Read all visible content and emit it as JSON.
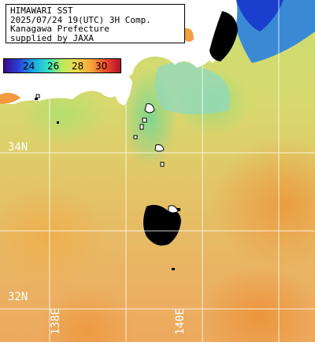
{
  "header": {
    "lines": [
      "HIMAWARI SST",
      "2025/07/24 19(UTC) 3H Comp.",
      "Kanagawa Prefecture",
      "supplied by JAXA"
    ]
  },
  "colorbar": {
    "ticks": [
      "24",
      "26",
      "28",
      "30"
    ],
    "colors": [
      "#3a0a8a",
      "#2b3fd8",
      "#1aa6e6",
      "#2ee0c4",
      "#b8ec5a",
      "#f0d84c",
      "#f5a33a",
      "#ee4a2a",
      "#b0102a"
    ]
  },
  "grid": {
    "lat_labels": [
      "34N",
      "32N"
    ],
    "lon_labels": [
      "138E",
      "140E"
    ]
  },
  "colors": {
    "land": "#ffffff",
    "no_data": "#000000",
    "grid": "#ffffff"
  }
}
